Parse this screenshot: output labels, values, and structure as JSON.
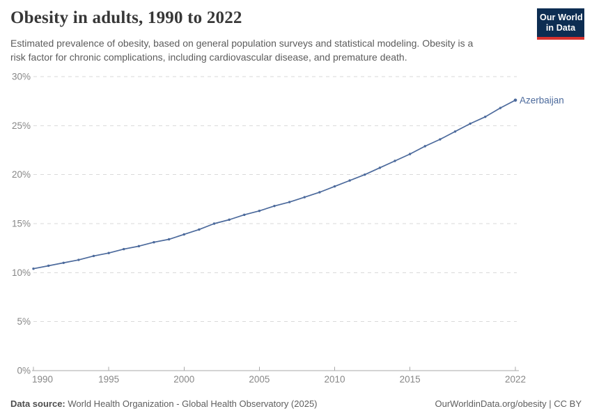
{
  "header": {
    "title": "Obesity in adults, 1990 to 2022",
    "subtitle_lines": [
      "Estimated prevalence of obesity, based on general population surveys and statistical modeling. Obesity is a",
      "risk factor for chronic complications, including cardiovascular disease, and premature death."
    ],
    "logo": {
      "line1": "Our World",
      "line2": "in Data",
      "bg_color": "#0d2d52",
      "stripe_color": "#d8322e",
      "text_color": "#ffffff"
    }
  },
  "chart_data": {
    "type": "line",
    "title": "Obesity in adults, 1990 to 2022",
    "xlabel": "",
    "ylabel": "",
    "xlim": [
      1990,
      2022
    ],
    "ylim": [
      0,
      30
    ],
    "grid": "horizontal-dashed",
    "legend_position": "end-of-line",
    "x_ticks": [
      1990,
      1995,
      2000,
      2005,
      2010,
      2015,
      2022
    ],
    "y_ticks": [
      0,
      5,
      10,
      15,
      20,
      25,
      30
    ],
    "y_tick_suffix": "%",
    "series": [
      {
        "name": "Azerbaijan",
        "color": "#4c6a9c",
        "x": [
          1990,
          1991,
          1992,
          1993,
          1994,
          1995,
          1996,
          1997,
          1998,
          1999,
          2000,
          2001,
          2002,
          2003,
          2004,
          2005,
          2006,
          2007,
          2008,
          2009,
          2010,
          2011,
          2012,
          2013,
          2014,
          2015,
          2016,
          2017,
          2018,
          2019,
          2020,
          2021,
          2022
        ],
        "values": [
          10.4,
          10.7,
          11.0,
          11.3,
          11.7,
          12.0,
          12.4,
          12.7,
          13.1,
          13.4,
          13.9,
          14.4,
          15.0,
          15.4,
          15.9,
          16.3,
          16.8,
          17.2,
          17.7,
          18.2,
          18.8,
          19.4,
          20.0,
          20.7,
          21.4,
          22.1,
          22.9,
          23.6,
          24.4,
          25.2,
          25.9,
          26.8,
          27.6
        ]
      }
    ],
    "colors": {
      "grid": "#dadada",
      "axis": "#a8a8a8",
      "tick_label": "#878787"
    }
  },
  "footer": {
    "source_label": "Data source:",
    "source_text": " World Health Organization - Global Health Observatory (2025)",
    "rights": "OurWorldinData.org/obesity | CC BY"
  }
}
